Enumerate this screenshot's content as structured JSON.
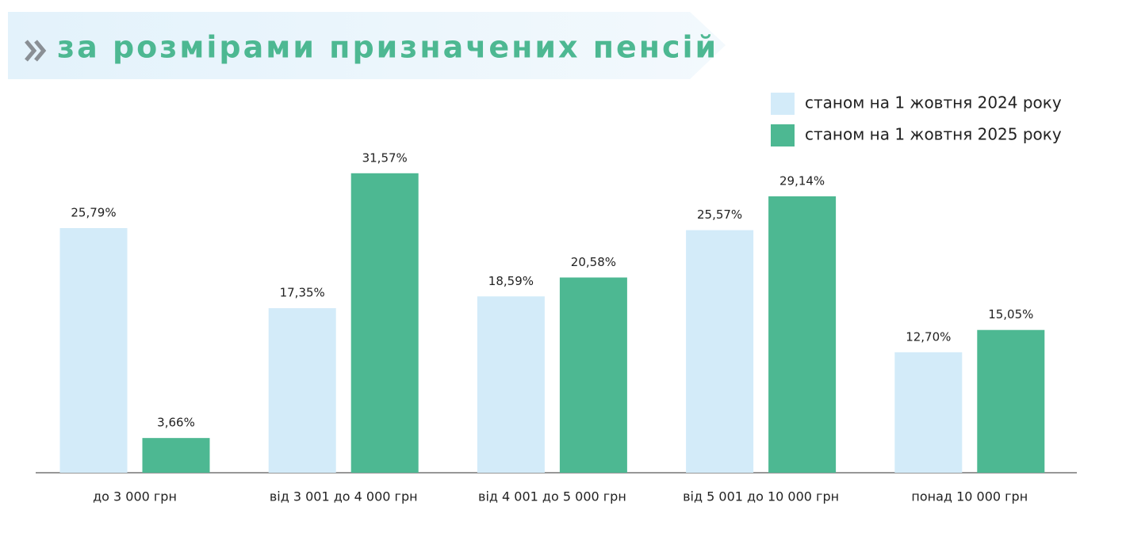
{
  "chart_data": {
    "type": "bar",
    "title": "за розмірами призначених пенсій",
    "categories": [
      "до 3 000 грн",
      "від 3 001 до 4 000 грн",
      "від 4 001 до 5 000 грн",
      "від 5 001 до 10 000 грн",
      "понад 10 000 грн"
    ],
    "series": [
      {
        "name": "станом на 1 жовтня 2024 року",
        "color": "#d3ebf9",
        "values": [
          25.79,
          17.35,
          18.59,
          25.57,
          12.7
        ],
        "value_labels": [
          "25,79%",
          "17,35%",
          "18,59%",
          "25,57%",
          "12,70%"
        ]
      },
      {
        "name": "станом на 1 жовтня 2025 року",
        "color": "#4db892",
        "values": [
          3.66,
          31.57,
          20.58,
          29.14,
          15.05
        ],
        "value_labels": [
          "3,66%",
          "31,57%",
          "20,58%",
          "29,14%",
          "15,05%"
        ]
      }
    ]
  }
}
